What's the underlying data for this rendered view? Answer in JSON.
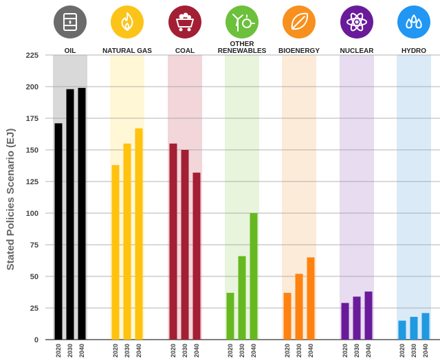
{
  "chart_data": {
    "type": "bar",
    "ylabel": "Stated Policies Scenario (EJ)",
    "ylim": [
      0,
      225
    ],
    "yticks": [
      0,
      25,
      50,
      75,
      100,
      125,
      150,
      175,
      200,
      225
    ],
    "grid": true,
    "years": [
      "2020",
      "2030",
      "2040"
    ],
    "categories": [
      {
        "label": "OIL",
        "icon": "oil-barrel-icon",
        "color": "#000000",
        "band_color": "#d9d9d9",
        "icon_bg": "#6b6b6b",
        "values": [
          171,
          198,
          199
        ]
      },
      {
        "label": "NATURAL GAS",
        "icon": "flame-icon",
        "color": "#ffc20e",
        "band_color": "#fff7d6",
        "icon_bg": "#fcc419",
        "values": [
          138,
          155,
          167
        ]
      },
      {
        "label": "COAL",
        "icon": "coal-cart-icon",
        "color": "#a31f34",
        "band_color": "#f2d6da",
        "icon_bg": "#a31f34",
        "values": [
          155,
          150,
          132
        ]
      },
      {
        "label": "OTHER RENEWABLES",
        "label_lines": [
          "OTHER",
          "RENEWABLES"
        ],
        "icon": "wind-solar-icon",
        "color": "#66b821",
        "band_color": "#e8f4dc",
        "icon_bg": "#6cc03b",
        "values": [
          37,
          66,
          100
        ]
      },
      {
        "label": "BIOENERGY",
        "icon": "leaf-icon",
        "color": "#ff8210",
        "band_color": "#fdebd9",
        "icon_bg": "#f7901e",
        "values": [
          37,
          52,
          65
        ]
      },
      {
        "label": "NUCLEAR",
        "icon": "atom-icon",
        "color": "#6a1b9a",
        "band_color": "#e8dcf0",
        "icon_bg": "#6a1b9a",
        "values": [
          29,
          34,
          38
        ]
      },
      {
        "label": "HYDRO",
        "icon": "water-drops-icon",
        "color": "#1f9ae0",
        "band_color": "#dbeaf7",
        "icon_bg": "#2196f3",
        "values": [
          15,
          18,
          21
        ]
      }
    ]
  }
}
